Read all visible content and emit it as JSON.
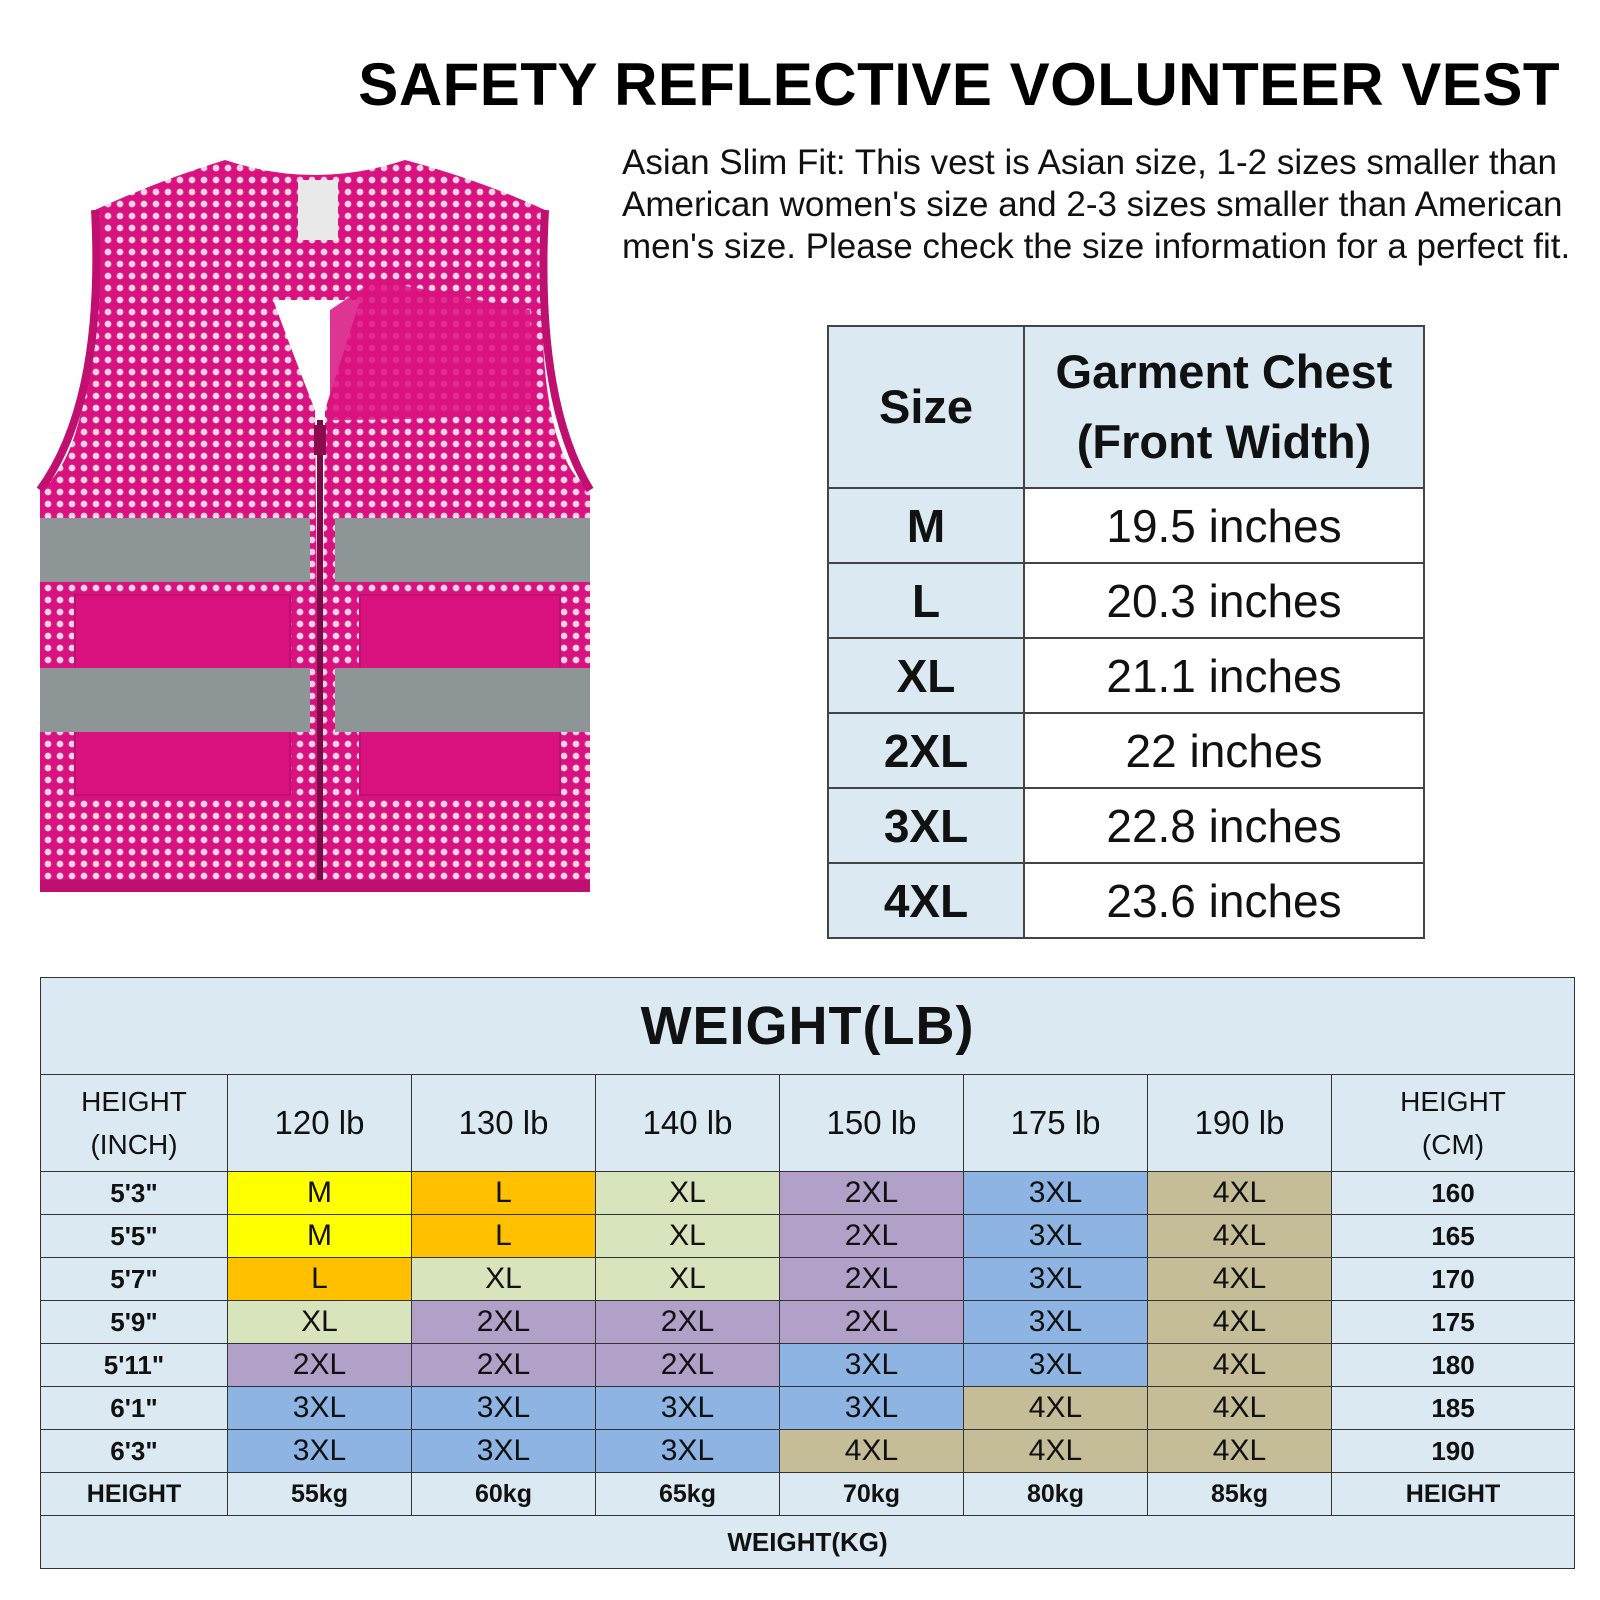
{
  "title": "SAFETY REFLECTIVE VOLUNTEER VEST",
  "description": "Asian Slim Fit: This vest is Asian size, 1-2 sizes smaller than American women's size and 2-3 sizes smaller than American men's size. Please check the size information for a perfect fit.",
  "colors": {
    "vest": "#d9127f",
    "reflective": "#8e9597",
    "table_bg": "#dbe9f2",
    "M": "#ffff00",
    "L": "#ffc000",
    "XL": "#d8e4bc",
    "2XL": "#b1a0c7",
    "3XL": "#8db4e2",
    "4XL": "#c4bd97"
  },
  "size_chart": {
    "header_size": "Size",
    "header_chest_line1": "Garment Chest",
    "header_chest_line2": "(Front Width)",
    "rows": [
      {
        "size": "M",
        "chest": "19.5 inches"
      },
      {
        "size": "L",
        "chest": "20.3 inches"
      },
      {
        "size": "XL",
        "chest": "21.1 inches"
      },
      {
        "size": "2XL",
        "chest": "22 inches"
      },
      {
        "size": "3XL",
        "chest": "22.8 inches"
      },
      {
        "size": "4XL",
        "chest": "23.6 inches"
      }
    ]
  },
  "weight_table": {
    "title": "WEIGHT(LB)",
    "left_header_line1": "HEIGHT",
    "left_header_line2": "(INCH)",
    "right_header_line1": "HEIGHT",
    "right_header_line2": "(CM)",
    "weights_lb": [
      "120 lb",
      "130 lb",
      "140 lb",
      "150 lb",
      "175 lb",
      "190 lb"
    ],
    "rows": [
      {
        "height_in": "5'3\"",
        "sizes": [
          "M",
          "L",
          "XL",
          "2XL",
          "3XL",
          "4XL"
        ],
        "height_cm": "160"
      },
      {
        "height_in": "5'5\"",
        "sizes": [
          "M",
          "L",
          "XL",
          "2XL",
          "3XL",
          "4XL"
        ],
        "height_cm": "165"
      },
      {
        "height_in": "5'7\"",
        "sizes": [
          "L",
          "XL",
          "XL",
          "2XL",
          "3XL",
          "4XL"
        ],
        "height_cm": "170"
      },
      {
        "height_in": "5'9\"",
        "sizes": [
          "XL",
          "2XL",
          "2XL",
          "2XL",
          "3XL",
          "4XL"
        ],
        "height_cm": "175"
      },
      {
        "height_in": "5'11\"",
        "sizes": [
          "2XL",
          "2XL",
          "2XL",
          "3XL",
          "3XL",
          "4XL"
        ],
        "height_cm": "180"
      },
      {
        "height_in": "6'1\"",
        "sizes": [
          "3XL",
          "3XL",
          "3XL",
          "3XL",
          "4XL",
          "4XL"
        ],
        "height_cm": "185"
      },
      {
        "height_in": "6'3\"",
        "sizes": [
          "3XL",
          "3XL",
          "3XL",
          "4XL",
          "4XL",
          "4XL"
        ],
        "height_cm": "190"
      }
    ],
    "kg_row_left": "HEIGHT",
    "weights_kg": [
      "55kg",
      "60kg",
      "65kg",
      "70kg",
      "80kg",
      "85kg"
    ],
    "kg_row_right": "HEIGHT",
    "footer": "WEIGHT(KG)"
  }
}
